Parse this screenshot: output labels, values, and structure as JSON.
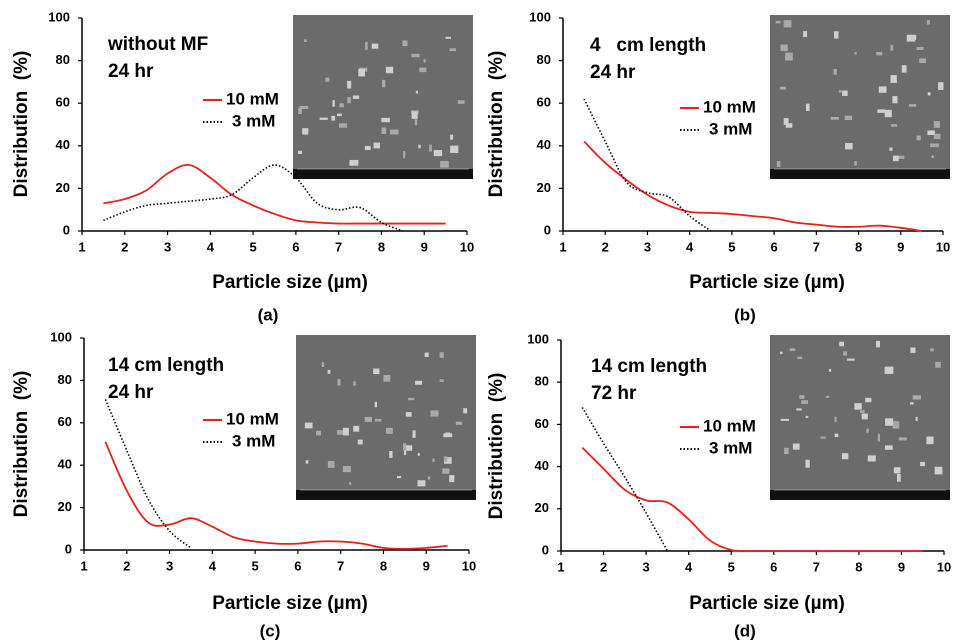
{
  "chart_data": [
    {
      "type": "line",
      "caption": "(a)",
      "annotation": [
        "without MF",
        "24 hr"
      ],
      "xlabel": "Particle size (µm)",
      "ylabel": "Distribution  (%)",
      "xlim": [
        1,
        10
      ],
      "ylim": [
        0,
        100
      ],
      "xticks": [
        1,
        2,
        3,
        4,
        5,
        6,
        7,
        8,
        9,
        10
      ],
      "yticks": [
        0,
        20,
        40,
        60,
        80,
        100
      ],
      "x": [
        1.5,
        2,
        2.5,
        3,
        3.5,
        4,
        4.5,
        5,
        5.5,
        6,
        6.5,
        7,
        7.5,
        8,
        8.5,
        9,
        9.5
      ],
      "series": [
        {
          "name": "10 mM",
          "color": "#e8201c",
          "line_style": "solid",
          "values": [
            13,
            15,
            19,
            27,
            31,
            25,
            17,
            12,
            8,
            5,
            4,
            3.5,
            3.5,
            3.5,
            3.5,
            3.5,
            3.5
          ]
        },
        {
          "name": "3 mM",
          "color": "#000000",
          "line_style": "dotted",
          "values": [
            5,
            9,
            12,
            13,
            14,
            15,
            17,
            25,
            31,
            25,
            13,
            10,
            11,
            4,
            0,
            null,
            null
          ]
        }
      ]
    },
    {
      "type": "line",
      "caption": "(b)",
      "annotation": [
        "4   cm length",
        "24 hr"
      ],
      "xlabel": "Particle size (µm)",
      "ylabel": "Distribution  (%)",
      "xlim": [
        1,
        10
      ],
      "ylim": [
        0,
        100
      ],
      "xticks": [
        1,
        2,
        3,
        4,
        5,
        6,
        7,
        8,
        9,
        10
      ],
      "yticks": [
        0,
        20,
        40,
        60,
        80,
        100
      ],
      "x": [
        1.5,
        2,
        2.5,
        3,
        3.5,
        4,
        4.5,
        5,
        5.5,
        6,
        6.5,
        7,
        7.5,
        8,
        8.5,
        9,
        9.5
      ],
      "series": [
        {
          "name": "10 mM",
          "color": "#e8201c",
          "line_style": "solid",
          "values": [
            42,
            32,
            24,
            17,
            12,
            9,
            8.5,
            8,
            7,
            6,
            4,
            3,
            2,
            2,
            2.5,
            1.5,
            0
          ]
        },
        {
          "name": "3 mM",
          "color": "#000000",
          "line_style": "dotted",
          "values": [
            62,
            42,
            23,
            18,
            16,
            7,
            0,
            null,
            null,
            null,
            null,
            null,
            null,
            null,
            null,
            null,
            null
          ]
        }
      ]
    },
    {
      "type": "line",
      "caption": "(c)",
      "annotation": [
        "14 cm length",
        "24 hr"
      ],
      "xlabel": "Particle size (µm)",
      "ylabel": "Distribution  (%)",
      "xlim": [
        1,
        10
      ],
      "ylim": [
        0,
        100
      ],
      "xticks": [
        1,
        2,
        3,
        4,
        5,
        6,
        7,
        8,
        9,
        10
      ],
      "yticks": [
        0,
        20,
        40,
        60,
        80,
        100
      ],
      "x": [
        1.5,
        2,
        2.5,
        3,
        3.5,
        4,
        4.5,
        5,
        5.5,
        6,
        6.5,
        7,
        7.5,
        8,
        8.5,
        9,
        9.5
      ],
      "series": [
        {
          "name": "10 mM",
          "color": "#e8201c",
          "line_style": "solid",
          "values": [
            51,
            28,
            13,
            12,
            15,
            11,
            6,
            4,
            3,
            3,
            4,
            4,
            3,
            1,
            0.5,
            1,
            2
          ]
        },
        {
          "name": "3 mM",
          "color": "#000000",
          "line_style": "dotted",
          "values": [
            71,
            47,
            24,
            9,
            1,
            null,
            null,
            null,
            null,
            null,
            null,
            null,
            null,
            null,
            null,
            null,
            null
          ]
        }
      ]
    },
    {
      "type": "line",
      "caption": "(d)",
      "annotation": [
        "14 cm length",
        "72 hr"
      ],
      "xlabel": "Particle size (µm)",
      "ylabel": "Distribution  (%)",
      "xlim": [
        1,
        10
      ],
      "ylim": [
        0,
        100
      ],
      "xticks": [
        1,
        2,
        3,
        4,
        5,
        6,
        7,
        8,
        9,
        10
      ],
      "yticks": [
        0,
        20,
        40,
        60,
        80,
        100
      ],
      "x": [
        1.5,
        2,
        2.5,
        3,
        3.5,
        4,
        4.5,
        5,
        5.5,
        6,
        6.5,
        7,
        7.5,
        8,
        8.5,
        9,
        9.5
      ],
      "series": [
        {
          "name": "10 mM",
          "color": "#e8201c",
          "line_style": "solid",
          "values": [
            49,
            39,
            29,
            24,
            23,
            15,
            5,
            0.5,
            0,
            0,
            0,
            0,
            0,
            0,
            0,
            0,
            0
          ]
        },
        {
          "name": "3 mM",
          "color": "#000000",
          "line_style": "dotted",
          "values": [
            68,
            51,
            35,
            18,
            0,
            null,
            null,
            null,
            null,
            null,
            null,
            null,
            null,
            null,
            null,
            null,
            null
          ]
        }
      ]
    }
  ]
}
